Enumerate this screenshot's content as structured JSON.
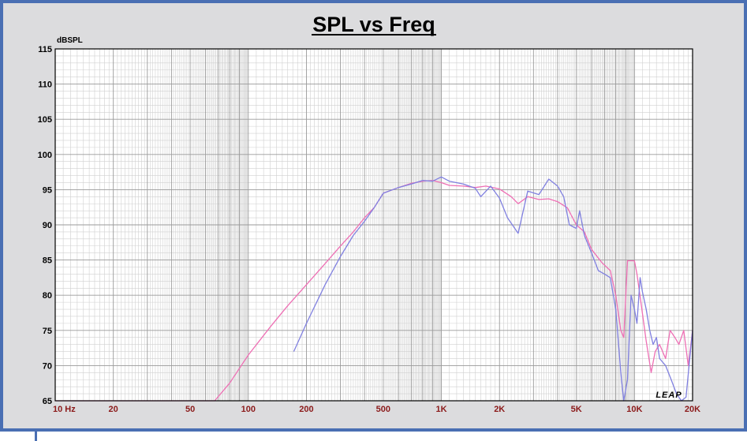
{
  "chart_data": {
    "type": "line",
    "title": "SPL vs Freq",
    "ylabel": "dBSPL",
    "xscale": "log",
    "xlim": [
      10,
      20000
    ],
    "ylim": [
      65,
      115
    ],
    "yticks": [
      115,
      110,
      105,
      100,
      95,
      90,
      85,
      80,
      75,
      70,
      65
    ],
    "xticks": [
      {
        "value": 10,
        "label": "10  Hz"
      },
      {
        "value": 20,
        "label": "20"
      },
      {
        "value": 50,
        "label": "50"
      },
      {
        "value": 100,
        "label": "100"
      },
      {
        "value": 200,
        "label": "200"
      },
      {
        "value": 500,
        "label": "500"
      },
      {
        "value": 1000,
        "label": "1K"
      },
      {
        "value": 2000,
        "label": "2K"
      },
      {
        "value": 5000,
        "label": "5K"
      },
      {
        "value": 10000,
        "label": "10K"
      },
      {
        "value": 20000,
        "label": "20K"
      }
    ],
    "grid": true,
    "series": [
      {
        "color": "#ee6fb4",
        "points": [
          [
            10,
            65
          ],
          [
            67,
            65
          ],
          [
            80,
            67.5
          ],
          [
            100,
            71.5
          ],
          [
            130,
            75.5
          ],
          [
            160,
            78.5
          ],
          [
            200,
            81.5
          ],
          [
            250,
            84.5
          ],
          [
            300,
            87
          ],
          [
            350,
            89
          ],
          [
            400,
            91
          ],
          [
            450,
            92.5
          ],
          [
            500,
            94.5
          ],
          [
            600,
            95.3
          ],
          [
            700,
            95.9
          ],
          [
            800,
            96.2
          ],
          [
            900,
            96.3
          ],
          [
            1000,
            96
          ],
          [
            1100,
            95.6
          ],
          [
            1300,
            95.5
          ],
          [
            1500,
            95.3
          ],
          [
            1700,
            95.5
          ],
          [
            2000,
            95.1
          ],
          [
            2300,
            94
          ],
          [
            2500,
            93
          ],
          [
            2800,
            94
          ],
          [
            3200,
            93.6
          ],
          [
            3600,
            93.7
          ],
          [
            4000,
            93.3
          ],
          [
            4500,
            92.4
          ],
          [
            5000,
            90
          ],
          [
            5500,
            89
          ],
          [
            6000,
            86.5
          ],
          [
            6800,
            84.6
          ],
          [
            7500,
            83.5
          ],
          [
            8000,
            80
          ],
          [
            8500,
            75
          ],
          [
            8800,
            74
          ],
          [
            9200,
            84.9
          ],
          [
            10000,
            84.9
          ],
          [
            10300,
            83
          ],
          [
            10800,
            79
          ],
          [
            11500,
            73.5
          ],
          [
            12200,
            69
          ],
          [
            12800,
            72
          ],
          [
            13500,
            73
          ],
          [
            14500,
            71
          ],
          [
            15300,
            75
          ],
          [
            16200,
            74
          ],
          [
            17000,
            73
          ],
          [
            18000,
            75
          ],
          [
            19000,
            70
          ],
          [
            20000,
            75
          ]
        ]
      },
      {
        "color": "#8080e0",
        "points": [
          [
            172,
            72
          ],
          [
            200,
            76
          ],
          [
            250,
            81.5
          ],
          [
            300,
            85.5
          ],
          [
            350,
            88.5
          ],
          [
            400,
            90.5
          ],
          [
            450,
            92.5
          ],
          [
            500,
            94.5
          ],
          [
            600,
            95.3
          ],
          [
            700,
            95.8
          ],
          [
            800,
            96.3
          ],
          [
            900,
            96.2
          ],
          [
            1000,
            96.8
          ],
          [
            1100,
            96.2
          ],
          [
            1300,
            95.8
          ],
          [
            1500,
            95.2
          ],
          [
            1600,
            94
          ],
          [
            1800,
            95.5
          ],
          [
            2000,
            93.8
          ],
          [
            2200,
            91
          ],
          [
            2500,
            88.8
          ],
          [
            2800,
            94.8
          ],
          [
            3200,
            94.3
          ],
          [
            3600,
            96.5
          ],
          [
            4000,
            95.5
          ],
          [
            4300,
            94
          ],
          [
            4600,
            90
          ],
          [
            5000,
            89.5
          ],
          [
            5200,
            92
          ],
          [
            5500,
            88.5
          ],
          [
            6000,
            86
          ],
          [
            6500,
            83.5
          ],
          [
            7000,
            83
          ],
          [
            7500,
            82.5
          ],
          [
            8000,
            78
          ],
          [
            8500,
            69
          ],
          [
            8800,
            65
          ],
          [
            9200,
            68
          ],
          [
            9600,
            80
          ],
          [
            10000,
            78
          ],
          [
            10300,
            76
          ],
          [
            10700,
            82.5
          ],
          [
            11000,
            80.5
          ],
          [
            11500,
            78
          ],
          [
            12000,
            75
          ],
          [
            12500,
            73
          ],
          [
            13000,
            74
          ],
          [
            13500,
            71
          ],
          [
            14500,
            70
          ],
          [
            15500,
            68
          ],
          [
            16500,
            66
          ],
          [
            17500,
            65
          ],
          [
            18500,
            65.5
          ],
          [
            19500,
            72
          ],
          [
            20000,
            75
          ]
        ]
      }
    ]
  },
  "logo_text": "LEAP"
}
